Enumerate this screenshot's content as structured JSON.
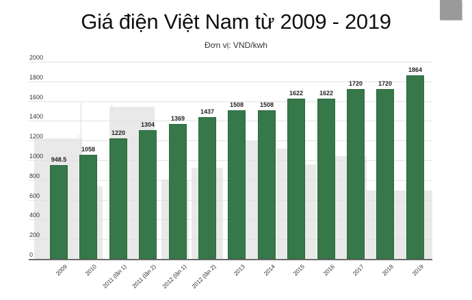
{
  "title": "Giá điện Việt Nam từ 2009 - 2019",
  "subtitle": "Đơn vị: VND/kwh",
  "colors": {
    "bar": "#37784a",
    "background_buildings": "#e9e9e9",
    "scrollbar": "#9a9a9a"
  },
  "y_ticks": [
    "2000",
    "1800",
    "1600",
    "1400",
    "1200",
    "1000",
    "800",
    "600",
    "400",
    "200",
    "0"
  ],
  "bars": [
    {
      "label": "2009",
      "value_label": "948.5"
    },
    {
      "label": "2010",
      "value_label": "1058"
    },
    {
      "label": "2011 (lần 1)",
      "value_label": "1220"
    },
    {
      "label": "2011 (lần 2)",
      "value_label": "1304"
    },
    {
      "label": "2012 (lần 1)",
      "value_label": "1369"
    },
    {
      "label": "2012 (lần 2)",
      "value_label": "1437"
    },
    {
      "label": "2013",
      "value_label": "1508"
    },
    {
      "label": "2014",
      "value_label": "1508"
    },
    {
      "label": "2015",
      "value_label": "1622"
    },
    {
      "label": "2016",
      "value_label": "1622"
    },
    {
      "label": "2017",
      "value_label": "1720"
    },
    {
      "label": "2018",
      "value_label": "1720"
    },
    {
      "label": "2019",
      "value_label": "1864"
    }
  ],
  "chart_data": {
    "type": "bar",
    "title": "Giá điện Việt Nam từ 2009 - 2019",
    "subtitle": "Đơn vị: VND/kwh",
    "xlabel": "",
    "ylabel": "VND/kwh",
    "categories": [
      "2009",
      "2010",
      "2011 (lần 1)",
      "2011 (lần 2)",
      "2012 (lần 1)",
      "2012 (lần 2)",
      "2013",
      "2014",
      "2015",
      "2016",
      "2017",
      "2018",
      "2019"
    ],
    "values": [
      948.5,
      1058,
      1220,
      1304,
      1369,
      1437,
      1508,
      1508,
      1622,
      1622,
      1720,
      1720,
      1864
    ],
    "ylim": [
      0,
      2000
    ],
    "yticks": [
      0,
      200,
      400,
      600,
      800,
      1000,
      1200,
      1400,
      1600,
      1800,
      2000
    ],
    "grid": true,
    "legend": "none",
    "data_labels": true
  }
}
